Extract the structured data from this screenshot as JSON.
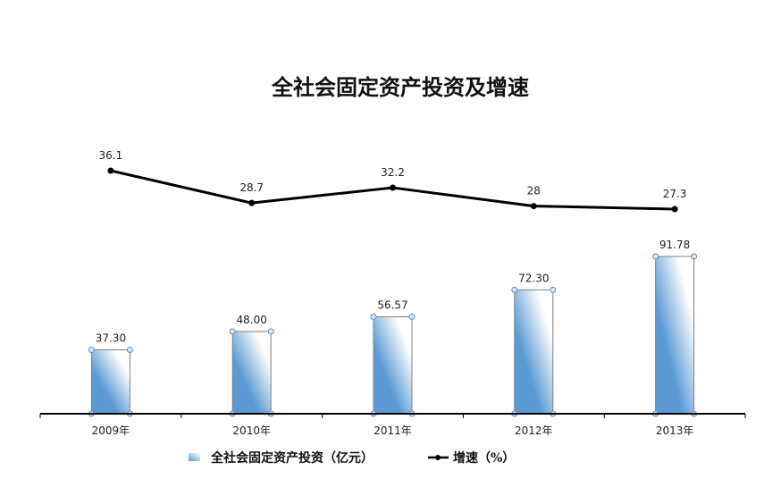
{
  "chart_data": {
    "type": "bar",
    "title": "全社会固定资产投资及增速",
    "categories": [
      "2009年",
      "2010年",
      "2011年",
      "2012年",
      "2013年"
    ],
    "series": [
      {
        "name": "全社会固定资产投资（亿元）",
        "type": "bar",
        "values": [
          37.3,
          48.0,
          56.57,
          72.3,
          91.78
        ],
        "labels": [
          "37.30",
          "48.00",
          "56.57",
          "72.30",
          "91.78"
        ],
        "color": "#5b9bd5"
      },
      {
        "name": "增速（%）",
        "type": "line",
        "values": [
          36.1,
          28.7,
          32.2,
          28,
          27.3
        ],
        "labels": [
          "36.1",
          "28.7",
          "32.2",
          "28",
          "27.3"
        ],
        "color": "#000000"
      }
    ],
    "legend_position": "bottom",
    "grid": false
  }
}
